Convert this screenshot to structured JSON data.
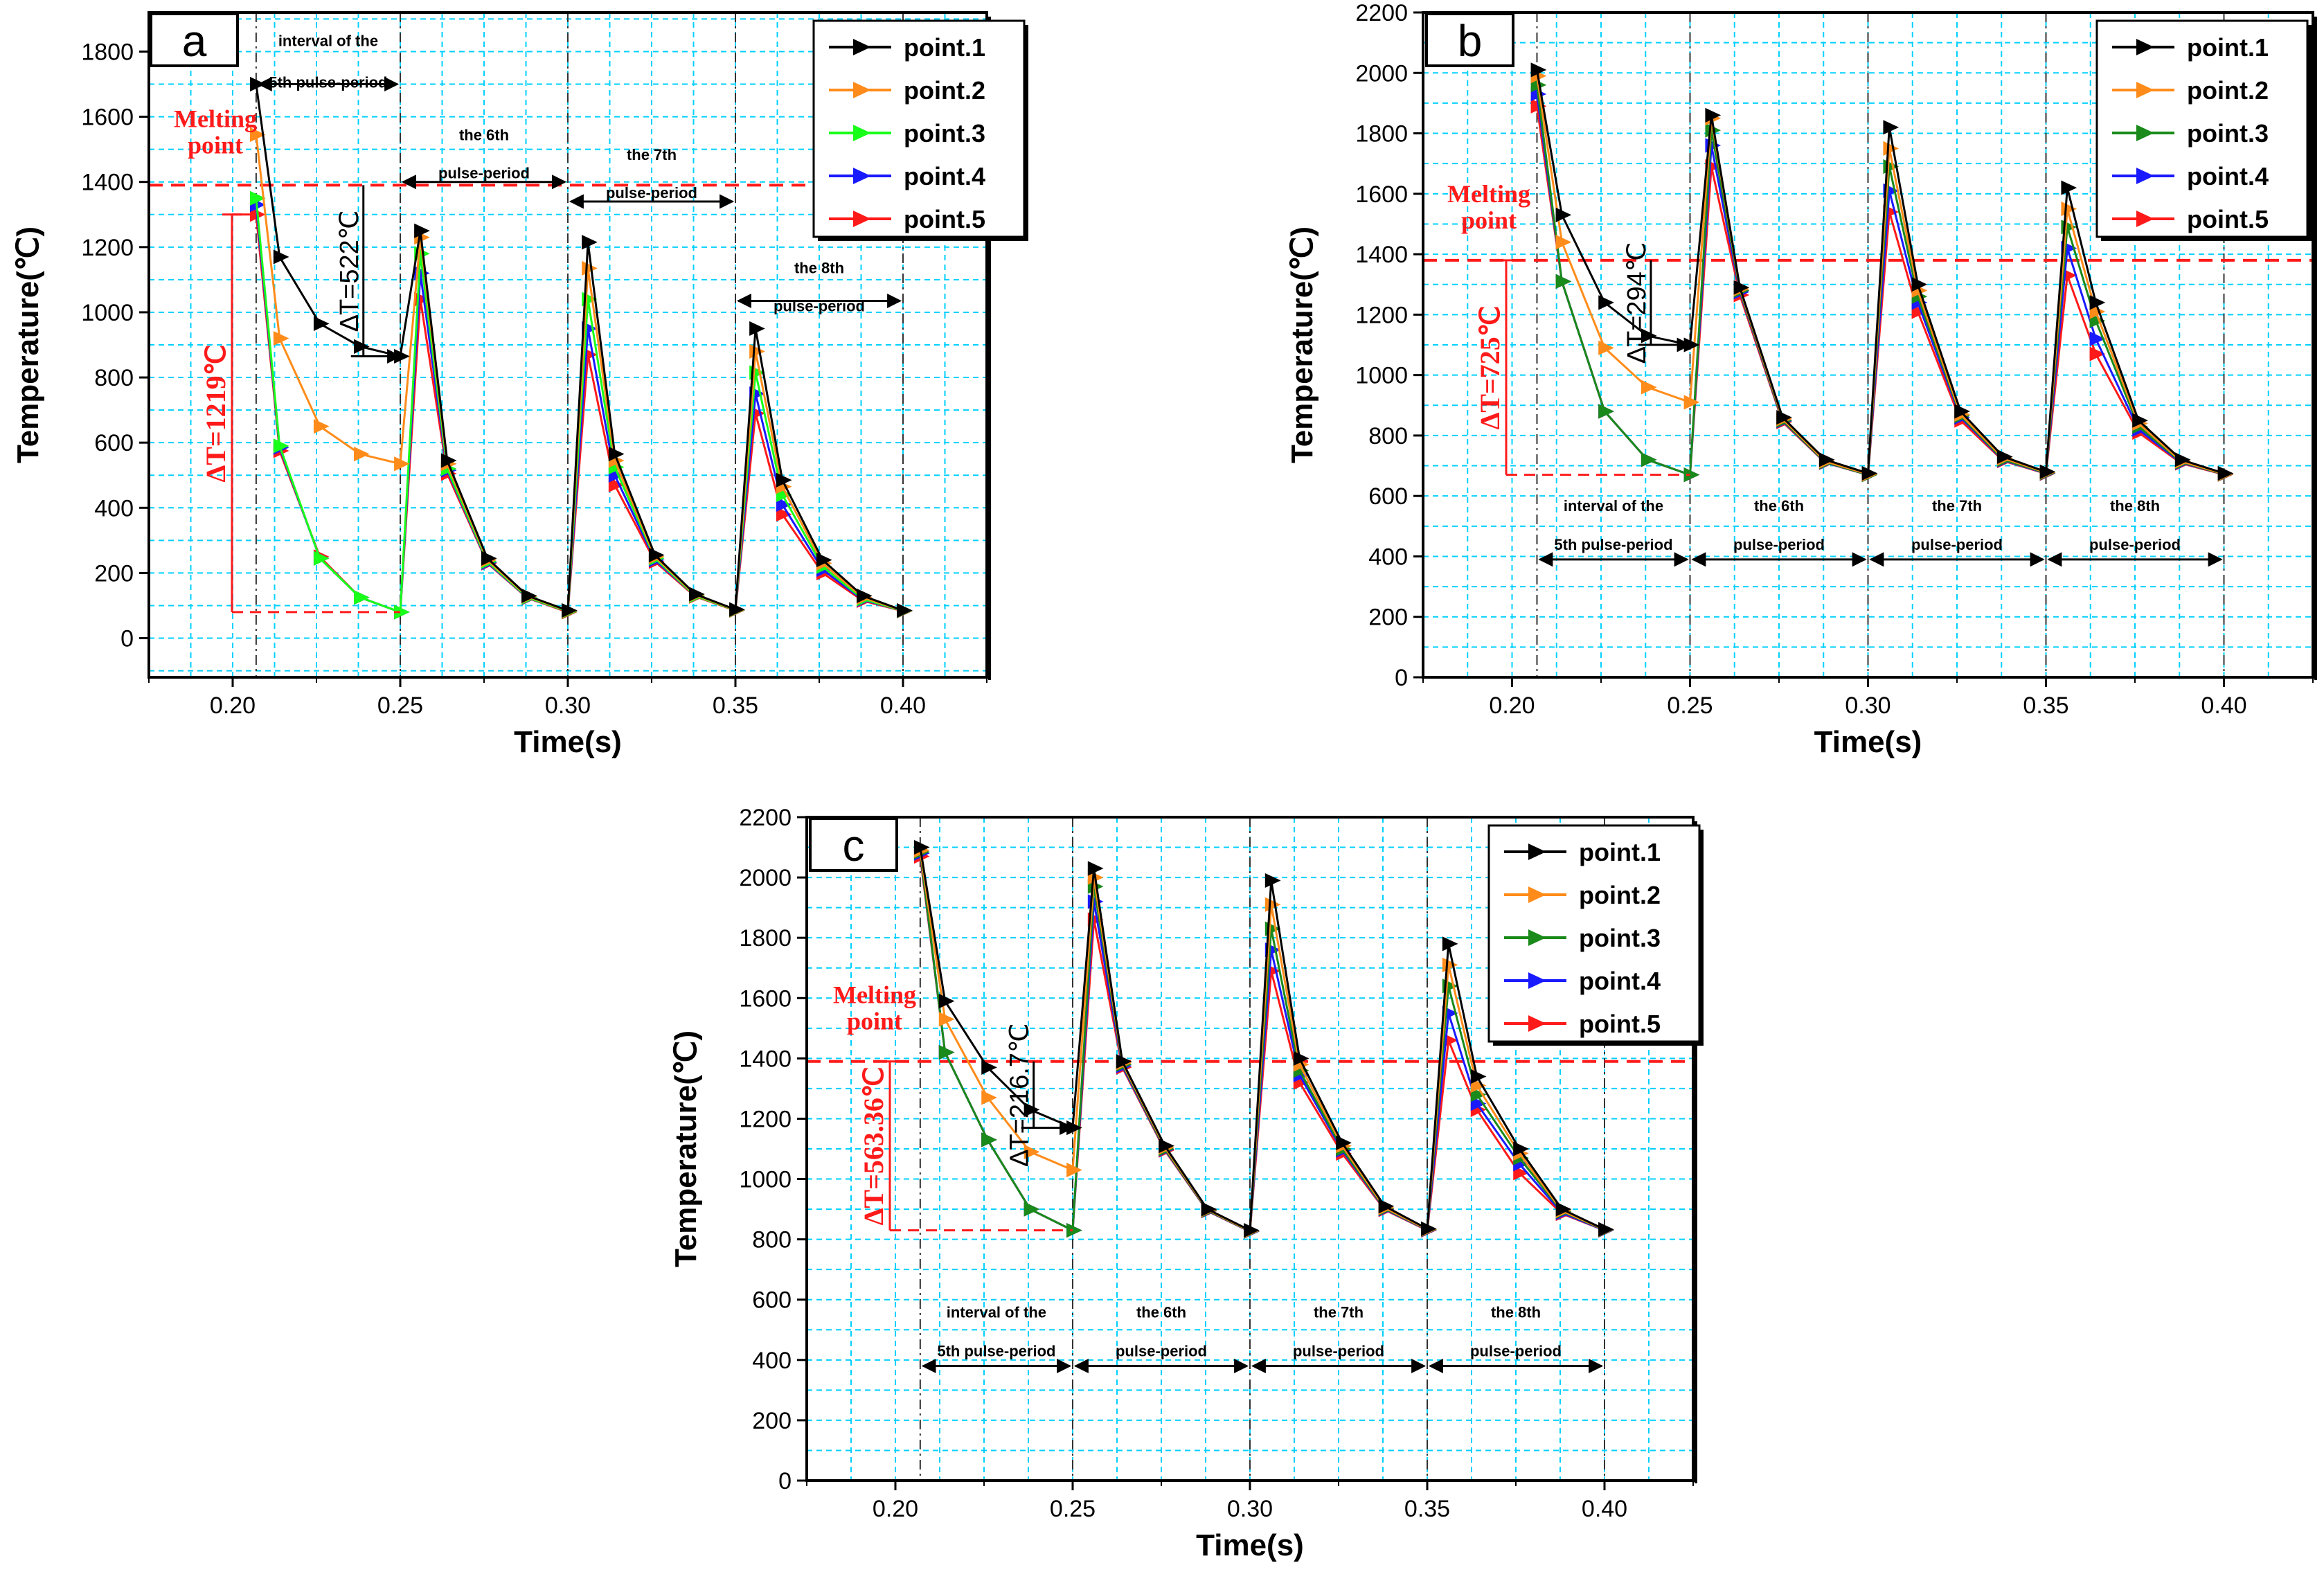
{
  "colors": {
    "point1": "#000000",
    "point2": "#ff8c1a",
    "point3_a": "#1aff1a",
    "point3_bc": "#1a8a1a",
    "point4": "#1a1aff",
    "point5": "#ff1a1a",
    "grid": "#00d0ff",
    "melting_line": "#ff1a1a"
  },
  "chart_data": [
    {
      "id": "a",
      "type": "line",
      "panel_label": "a",
      "xlabel": "Time(s)",
      "ylabel": "Temperature(℃)",
      "xlim": [
        0.175,
        0.425
      ],
      "ylim": [
        -120,
        1920
      ],
      "xticks": [
        "0.20",
        "0.25",
        "0.30",
        "0.35",
        "0.40"
      ],
      "yticks": [
        "0",
        "200",
        "400",
        "600",
        "800",
        "1000",
        "1200",
        "1400",
        "1600",
        "1800"
      ],
      "melting_point": 1390,
      "melting_label": [
        "Melting",
        "point"
      ],
      "legend": [
        "point.1",
        "point.2",
        "point.3",
        "point.4",
        "point.5"
      ],
      "series": [
        {
          "name": "point.1",
          "color_key": "point1",
          "x": [
            0.207,
            0.214,
            0.226,
            0.238,
            0.25,
            0.256,
            0.264,
            0.276,
            0.288,
            0.3,
            0.306,
            0.314,
            0.326,
            0.338,
            0.35,
            0.356,
            0.364,
            0.376,
            0.388,
            0.4
          ],
          "y": [
            1700,
            1170,
            965,
            895,
            865,
            1250,
            545,
            245,
            130,
            85,
            1215,
            565,
            255,
            135,
            88,
            950,
            485,
            240,
            130,
            85
          ]
        },
        {
          "name": "point.2",
          "color_key": "point2",
          "x": [
            0.207,
            0.214,
            0.226,
            0.238,
            0.25,
            0.256,
            0.264,
            0.276,
            0.288,
            0.3,
            0.306,
            0.314,
            0.326,
            0.338,
            0.35,
            0.356,
            0.364,
            0.376,
            0.388,
            0.4
          ],
          "y": [
            1545,
            920,
            650,
            565,
            535,
            1230,
            535,
            240,
            128,
            84,
            1135,
            545,
            250,
            133,
            87,
            880,
            465,
            230,
            125,
            85
          ]
        },
        {
          "name": "point.3",
          "color_key": "point3_a",
          "x": [
            0.207,
            0.214,
            0.226,
            0.238,
            0.25,
            0.256,
            0.264,
            0.276,
            0.288,
            0.3,
            0.306,
            0.314,
            0.326,
            0.338,
            0.35,
            0.356,
            0.364,
            0.376,
            0.388,
            0.4
          ],
          "y": [
            1350,
            590,
            245,
            125,
            80,
            1180,
            520,
            235,
            125,
            82,
            1040,
            525,
            245,
            130,
            86,
            815,
            440,
            220,
            120,
            84
          ]
        },
        {
          "name": "point.4",
          "color_key": "point4",
          "x": [
            0.207,
            0.214,
            0.226,
            0.238,
            0.25,
            0.256,
            0.264,
            0.276,
            0.288,
            0.3,
            0.306,
            0.314,
            0.326,
            0.338,
            0.35,
            0.356,
            0.364,
            0.376,
            0.388,
            0.4
          ],
          "y": [
            1330,
            585,
            245,
            125,
            80,
            1120,
            515,
            232,
            124,
            82,
            950,
            500,
            240,
            130,
            86,
            750,
            410,
            210,
            118,
            84
          ]
        },
        {
          "name": "point.5",
          "color_key": "point5",
          "x": [
            0.207,
            0.214,
            0.226,
            0.238,
            0.25,
            0.256,
            0.264,
            0.276,
            0.288,
            0.3,
            0.306,
            0.314,
            0.326,
            0.338,
            0.35,
            0.356,
            0.364,
            0.376,
            0.388,
            0.4
          ],
          "y": [
            1300,
            575,
            250,
            125,
            80,
            1040,
            505,
            230,
            123,
            80,
            870,
            470,
            235,
            128,
            85,
            690,
            380,
            200,
            115,
            83
          ]
        }
      ],
      "annotations": {
        "dt_small": "∆T=522℃",
        "dt_big": "∆T=1219℃",
        "period_labels": [
          [
            "interval of the",
            "5th pulse-period"
          ],
          [
            "the 6th",
            "pulse-period"
          ],
          [
            "the 7th",
            "pulse-period"
          ],
          [
            "the 8th",
            "pulse-period"
          ]
        ]
      }
    },
    {
      "id": "b",
      "type": "line",
      "panel_label": "b",
      "xlabel": "Time(s)",
      "ylabel": "Temperature(℃)",
      "xlim": [
        0.175,
        0.425
      ],
      "ylim": [
        0,
        2200
      ],
      "xticks": [
        "0.20",
        "0.25",
        "0.30",
        "0.35",
        "0.40"
      ],
      "yticks": [
        "0",
        "200",
        "400",
        "600",
        "800",
        "1000",
        "1200",
        "1400",
        "1600",
        "1800",
        "2000",
        "2200"
      ],
      "melting_point": 1380,
      "melting_label": [
        "Melting",
        "point"
      ],
      "legend": [
        "point.1",
        "point.2",
        "point.3",
        "point.4",
        "point.5"
      ],
      "series": [
        {
          "name": "point.1",
          "color_key": "point1",
          "x": [
            0.207,
            0.214,
            0.226,
            0.238,
            0.25,
            0.256,
            0.264,
            0.276,
            0.288,
            0.3,
            0.306,
            0.314,
            0.326,
            0.338,
            0.35,
            0.356,
            0.364,
            0.376,
            0.388,
            0.4
          ],
          "y": [
            2010,
            1530,
            1240,
            1130,
            1100,
            1860,
            1290,
            860,
            720,
            675,
            1820,
            1300,
            880,
            730,
            680,
            1620,
            1240,
            850,
            720,
            675
          ]
        },
        {
          "name": "point.2",
          "color_key": "point2",
          "x": [
            0.207,
            0.214,
            0.226,
            0.238,
            0.25,
            0.256,
            0.264,
            0.276,
            0.288,
            0.3,
            0.306,
            0.314,
            0.326,
            0.338,
            0.35,
            0.356,
            0.364,
            0.376,
            0.388,
            0.4
          ],
          "y": [
            1990,
            1440,
            1090,
            960,
            910,
            1850,
            1285,
            855,
            715,
            672,
            1750,
            1280,
            870,
            725,
            678,
            1550,
            1210,
            840,
            715,
            673
          ]
        },
        {
          "name": "point.3",
          "color_key": "point3_bc",
          "x": [
            0.207,
            0.214,
            0.226,
            0.238,
            0.25,
            0.256,
            0.264,
            0.276,
            0.288,
            0.3,
            0.306,
            0.314,
            0.326,
            0.338,
            0.35,
            0.356,
            0.364,
            0.376,
            0.388,
            0.4
          ],
          "y": [
            1960,
            1310,
            880,
            720,
            670,
            1810,
            1280,
            850,
            712,
            670,
            1690,
            1260,
            865,
            720,
            676,
            1490,
            1180,
            830,
            712,
            672
          ]
        },
        {
          "name": "point.4",
          "color_key": "point4",
          "x": [
            0.207,
            0.214,
            0.226,
            0.238,
            0.25,
            0.256,
            0.264,
            0.276,
            0.288,
            0.3,
            0.306,
            0.314,
            0.326,
            0.338,
            0.35,
            0.356,
            0.364,
            0.376,
            0.388,
            0.4
          ],
          "y": [
            1930,
            1310,
            880,
            720,
            670,
            1760,
            1275,
            848,
            711,
            670,
            1610,
            1240,
            860,
            718,
            675,
            1420,
            1120,
            820,
            710,
            672
          ]
        },
        {
          "name": "point.5",
          "color_key": "point5",
          "x": [
            0.207,
            0.214,
            0.226,
            0.238,
            0.25,
            0.256,
            0.264,
            0.276,
            0.288,
            0.3,
            0.306,
            0.314,
            0.326,
            0.338,
            0.35,
            0.356,
            0.364,
            0.376,
            0.388,
            0.4
          ],
          "y": [
            1890,
            1310,
            880,
            720,
            670,
            1690,
            1265,
            845,
            710,
            670,
            1540,
            1210,
            850,
            716,
            674,
            1330,
            1070,
            810,
            708,
            671
          ]
        }
      ],
      "annotations": {
        "dt_small": "∆T=294℃",
        "dt_big": "∆T=725℃",
        "period_labels": [
          [
            "interval of the",
            "5th pulse-period"
          ],
          [
            "the 6th",
            "pulse-period"
          ],
          [
            "the 7th",
            "pulse-period"
          ],
          [
            "the 8th",
            "pulse-period"
          ]
        ]
      }
    },
    {
      "id": "c",
      "type": "line",
      "panel_label": "c",
      "xlabel": "Time(s)",
      "ylabel": "Temperature(℃)",
      "xlim": [
        0.175,
        0.425
      ],
      "ylim": [
        0,
        2200
      ],
      "xticks": [
        "0.20",
        "0.25",
        "0.30",
        "0.35",
        "0.40"
      ],
      "yticks": [
        "0",
        "200",
        "400",
        "600",
        "800",
        "1000",
        "1200",
        "1400",
        "1600",
        "1800",
        "2000",
        "2200"
      ],
      "melting_point": 1390,
      "melting_label": [
        "Melting",
        "point"
      ],
      "legend": [
        "point.1",
        "point.2",
        "point.3",
        "point.4",
        "point.5"
      ],
      "series": [
        {
          "name": "point.1",
          "color_key": "point1",
          "x": [
            0.207,
            0.214,
            0.226,
            0.238,
            0.25,
            0.256,
            0.264,
            0.276,
            0.288,
            0.3,
            0.306,
            0.314,
            0.326,
            0.338,
            0.35,
            0.356,
            0.364,
            0.376,
            0.388,
            0.4
          ],
          "y": [
            2100,
            1590,
            1370,
            1230,
            1170,
            2030,
            1390,
            1110,
            900,
            830,
            1990,
            1400,
            1120,
            910,
            835,
            1780,
            1340,
            1100,
            900,
            833
          ]
        },
        {
          "name": "point.2",
          "color_key": "point2",
          "x": [
            0.207,
            0.214,
            0.226,
            0.238,
            0.25,
            0.256,
            0.264,
            0.276,
            0.288,
            0.3,
            0.306,
            0.314,
            0.326,
            0.338,
            0.35,
            0.356,
            0.364,
            0.376,
            0.388,
            0.4
          ],
          "y": [
            2090,
            1530,
            1270,
            1090,
            1030,
            2000,
            1385,
            1105,
            898,
            828,
            1910,
            1380,
            1110,
            905,
            833,
            1710,
            1310,
            1085,
            895,
            832
          ]
        },
        {
          "name": "point.3",
          "color_key": "point3_bc",
          "x": [
            0.207,
            0.214,
            0.226,
            0.238,
            0.25,
            0.256,
            0.264,
            0.276,
            0.288,
            0.3,
            0.306,
            0.314,
            0.326,
            0.338,
            0.35,
            0.356,
            0.364,
            0.376,
            0.388,
            0.4
          ],
          "y": [
            2085,
            1420,
            1130,
            900,
            830,
            1970,
            1380,
            1100,
            896,
            827,
            1830,
            1360,
            1100,
            902,
            832,
            1640,
            1280,
            1070,
            892,
            831
          ]
        },
        {
          "name": "point.4",
          "color_key": "point4",
          "x": [
            0.207,
            0.214,
            0.226,
            0.238,
            0.25,
            0.256,
            0.264,
            0.276,
            0.288,
            0.3,
            0.306,
            0.314,
            0.326,
            0.338,
            0.35,
            0.356,
            0.364,
            0.376,
            0.388,
            0.4
          ],
          "y": [
            2080,
            1420,
            1130,
            900,
            830,
            1920,
            1375,
            1098,
            895,
            826,
            1760,
            1345,
            1095,
            900,
            831,
            1550,
            1250,
            1050,
            888,
            830
          ]
        },
        {
          "name": "point.5",
          "color_key": "point5",
          "x": [
            0.207,
            0.214,
            0.226,
            0.238,
            0.25,
            0.256,
            0.264,
            0.276,
            0.288,
            0.3,
            0.306,
            0.314,
            0.326,
            0.338,
            0.35,
            0.356,
            0.364,
            0.376,
            0.388,
            0.4
          ],
          "y": [
            2070,
            1420,
            1130,
            900,
            830,
            1860,
            1370,
            1095,
            894,
            826,
            1690,
            1320,
            1085,
            898,
            830,
            1460,
            1230,
            1020,
            885,
            830
          ]
        }
      ],
      "annotations": {
        "dt_small": "∆T=216.7℃",
        "dt_big": "∆T=563.36℃",
        "period_labels": [
          [
            "interval of the",
            "5th pulse-period"
          ],
          [
            "the 6th",
            "pulse-period"
          ],
          [
            "the 7th",
            "pulse-period"
          ],
          [
            "the 8th",
            "pulse-period"
          ]
        ]
      }
    }
  ]
}
